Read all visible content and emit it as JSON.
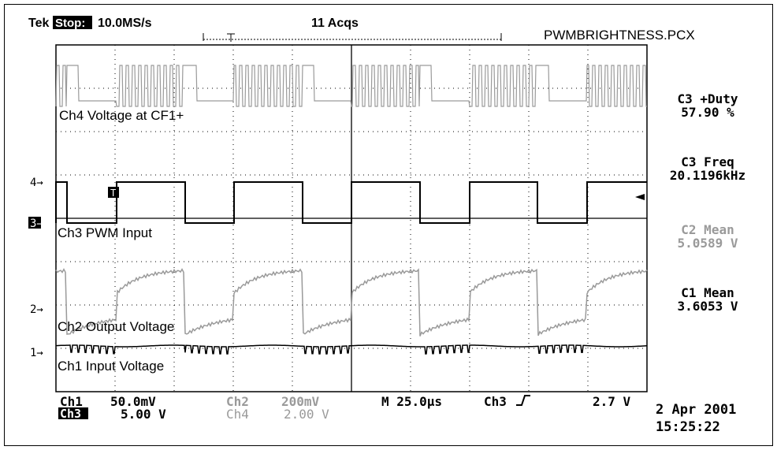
{
  "header": {
    "brand": "Tek",
    "state": "Stop:",
    "sample_rate": "10.0MS/s",
    "acqs": "11 Acqs",
    "filename": "PWMBRIGHTNESS.PCX"
  },
  "measurements": [
    {
      "label": "C3 +Duty",
      "value": "57.90 %",
      "color": "#000000"
    },
    {
      "label": "C3 Freq",
      "value": "20.1196kHz",
      "color": "#000000"
    },
    {
      "label": "C2 Mean",
      "value": "5.0589 V",
      "color": "#9a9a9a"
    },
    {
      "label": "C1 Mean",
      "value": "3.6053 V",
      "color": "#000000"
    }
  ],
  "footer": {
    "ch1": "Ch1",
    "ch1_scale": "50.0mV",
    "ch2": "Ch2",
    "ch2_scale": "200mV",
    "ch3": "Ch3",
    "ch3_scale": "5.00 V",
    "ch4": "Ch4",
    "ch4_scale": "2.00 V",
    "timebase": "M 25.0µs",
    "trigger_source": "Ch3",
    "trigger_slope_icon": "rising-edge-icon",
    "trigger_level": "2.7 V",
    "date": "2 Apr 2001",
    "time": "15:25:22"
  },
  "chart_data": {
    "type": "line",
    "title": "",
    "grid": true,
    "x_divisions": 10,
    "y_divisions": 8,
    "time_per_div": "25.0µs",
    "trigger_marker": "T",
    "series": [
      {
        "name": "Ch4 Voltage at CF1+",
        "channel": "4",
        "scale": "2.00 V",
        "color": "#9a9a9a",
        "shape": "pwm-burst",
        "description_level_high_div": 0.7
      },
      {
        "name": "Ch3 PWM Input",
        "channel": "3",
        "scale": "5.00 V",
        "color": "#000000",
        "shape": "square",
        "frequency_khz": 20.1196,
        "duty_percent": 57.9
      },
      {
        "name": "Ch2 Output Voltage",
        "channel": "2",
        "scale": "200mV",
        "color": "#9a9a9a",
        "shape": "charge-discharge",
        "mean_v": 5.0589
      },
      {
        "name": "Ch1 Input Voltage",
        "channel": "1",
        "scale": "50.0mV",
        "color": "#000000",
        "shape": "ripple",
        "mean_v": 3.6053
      }
    ]
  }
}
